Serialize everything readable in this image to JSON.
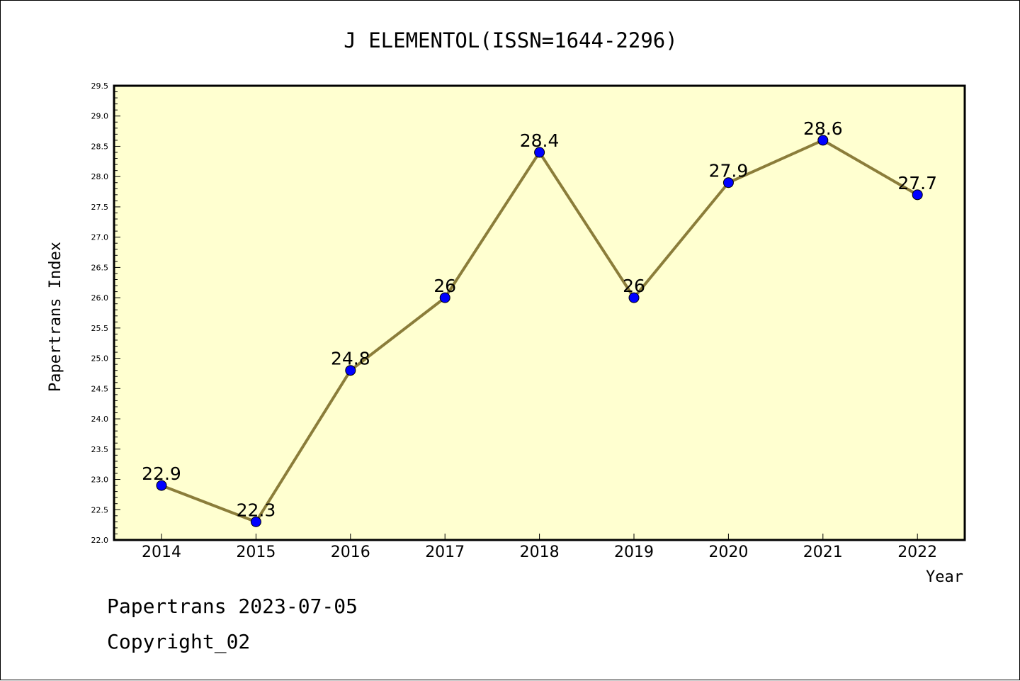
{
  "chart_data": {
    "type": "line",
    "title": "J ELEMENTOL(ISSN=1644-2296)",
    "xlabel": "Year",
    "ylabel": "Papertrans Index",
    "categories": [
      "2014",
      "2015",
      "2016",
      "2017",
      "2018",
      "2019",
      "2020",
      "2021",
      "2022"
    ],
    "values": [
      22.9,
      22.3,
      24.8,
      26,
      28.4,
      26,
      27.9,
      28.6,
      27.7
    ],
    "data_labels": [
      "22.9",
      "22.3",
      "24.8",
      "26",
      "28.4",
      "26",
      "27.9",
      "28.6",
      "27.7"
    ],
    "ylim": [
      22.0,
      29.5
    ],
    "yticks": [
      "22.0",
      "22.5",
      "23.0",
      "23.5",
      "24.0",
      "24.5",
      "25.0",
      "25.5",
      "26.0",
      "26.5",
      "27.0",
      "27.5",
      "28.0",
      "28.5",
      "29.0",
      "29.5"
    ],
    "grid": false,
    "legend": "none",
    "colors": {
      "plot_background": "#ffffd0",
      "line": "#8b7d3a",
      "marker": "#0000ff"
    }
  },
  "footer": {
    "line1": "Papertrans 2023-07-05",
    "line2": "Copyright_02"
  }
}
